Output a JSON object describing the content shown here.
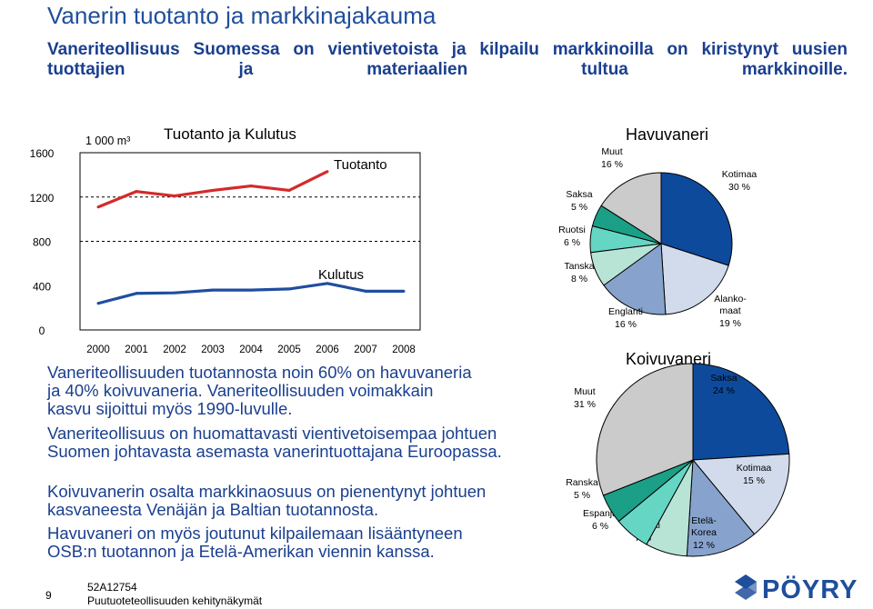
{
  "slide": {
    "title": "Vanerin tuotanto ja markkinajakauma",
    "subtitle": "Vaneriteollisuus Suomessa on vientivetoista ja kilpailu markkinoilla on kiristynyt uusien tuottajien ja materiaalien tultua markkinoille.",
    "paragraphs": [
      "Vaneriteollisuuden tuotannosta noin 60% on havuvaneria ja 40% koivuvaneria. Vaneriteollisuuden voimakkain kasvu sijoittui myös 1990-luvulle.",
      "Vaneriteollisuus on huomattavasti vientivetoisempaa johtuen Suomen johtavasta asemasta vanerintuottajana Euroopassa.",
      "Koivuvanerin osalta markkinaosuus on pienentynyt johtuen kasvaneesta Venäjän ja Baltian tuotannosta.",
      "Havuvaneri on myös joutunut kilpailemaan lisääntyneen OSB:n tuotannon ja Etelä-Amerikan viennin kanssa."
    ],
    "footer": {
      "page_number": "9",
      "code": "52A12754",
      "doc_title": "Puutuoteteollisuuden kehitynäkymät",
      "logo_text": "PÖYRY"
    }
  },
  "chart_data": [
    {
      "type": "line",
      "title": "Tuotanto ja Kulutus",
      "unit_label": "1 000 m³",
      "x": [
        "2000",
        "2001",
        "2002",
        "2003",
        "2004",
        "2005",
        "2006",
        "2007",
        "2008"
      ],
      "ylim": [
        0,
        1600
      ],
      "yticks": [
        0,
        400,
        800,
        1200,
        1600
      ],
      "series": [
        {
          "name": "Tuotanto",
          "color": "#d42a2a",
          "values": [
            1110,
            1250,
            1210,
            1260,
            1300,
            1260,
            1430,
            null,
            null
          ]
        },
        {
          "name": "Kulutus",
          "color": "#1f4ea0",
          "values": [
            240,
            330,
            335,
            360,
            360,
            370,
            420,
            350,
            350
          ]
        }
      ],
      "reference_lines": [
        1200,
        800
      ]
    },
    {
      "type": "pie",
      "title": "Havuvaneri",
      "slices": [
        {
          "label": "Kotimaa",
          "value": 30,
          "color": "#0d4a9b"
        },
        {
          "label": "Alanko-\nmaat",
          "value": 19,
          "color": "#d2dbeb"
        },
        {
          "label": "Englanti",
          "value": 16,
          "color": "#87a3cd"
        },
        {
          "label": "Tanska",
          "value": 8,
          "color": "#b8e4d6"
        },
        {
          "label": "Ruotsi",
          "value": 6,
          "color": "#66d6c4"
        },
        {
          "label": "Saksa",
          "value": 5,
          "color": "#1b9f86"
        },
        {
          "label": "Muut",
          "value": 16,
          "color": "#cbcbcb"
        }
      ],
      "value_suffix": " %"
    },
    {
      "type": "pie",
      "title": "Koivuvaneri",
      "slices": [
        {
          "label": "Saksa",
          "value": 24,
          "color": "#0d4a9b"
        },
        {
          "label": "Kotimaa",
          "value": 15,
          "color": "#d2dbeb"
        },
        {
          "label": "Etelä-\nKorea",
          "value": 12,
          "color": "#87a3cd"
        },
        {
          "label": "Englanti",
          "value": 7,
          "color": "#b8e4d6"
        },
        {
          "label": "Espanja",
          "value": 6,
          "color": "#66d6c4"
        },
        {
          "label": "Ranska",
          "value": 5,
          "color": "#1b9f86"
        },
        {
          "label": "Muut",
          "value": 31,
          "color": "#cbcbcb"
        }
      ],
      "value_suffix": " %"
    }
  ]
}
